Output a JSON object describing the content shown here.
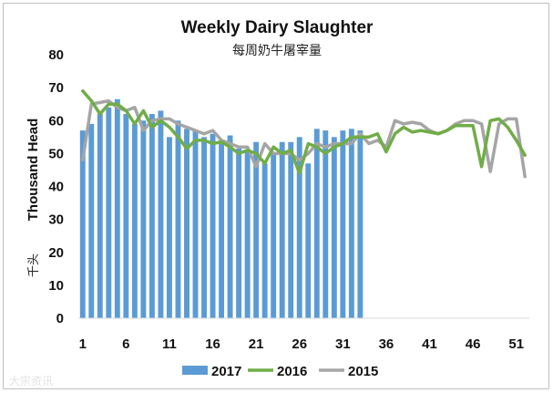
{
  "chart_data": {
    "type": "bar+line",
    "title": "Weekly Dairy Slaughter",
    "subtitle": "每周奶牛屠宰量",
    "ylabel": "Thousand Head",
    "ylabel_cn": "千头",
    "ylim": [
      0,
      80
    ],
    "yticks": [
      "0",
      "10",
      "20",
      "30",
      "40",
      "50",
      "60",
      "70",
      "80"
    ],
    "xlim": [
      1,
      52
    ],
    "xticks": [
      "1",
      "6",
      "11",
      "16",
      "21",
      "26",
      "31",
      "36",
      "41",
      "46",
      "51"
    ],
    "grid": false,
    "legend_position": "bottom",
    "series": [
      {
        "name": "2017",
        "kind": "bar",
        "color": "#5b9bd5",
        "x": [
          1,
          2,
          3,
          4,
          5,
          6,
          7,
          8,
          9,
          10,
          11,
          12,
          13,
          14,
          15,
          16,
          17,
          18,
          19,
          20,
          21,
          22,
          23,
          24,
          25,
          26,
          27,
          28,
          29,
          30,
          31,
          32,
          33
        ],
        "values": [
          57,
          59,
          62,
          64,
          66.5,
          62,
          59,
          60,
          62,
          63,
          55,
          60,
          57.5,
          57,
          55,
          56,
          54,
          55.5,
          51.5,
          51,
          53.5,
          47,
          50,
          53.5,
          53.5,
          55,
          47,
          57.5,
          57,
          55,
          57,
          57.5,
          57
        ]
      },
      {
        "name": "2016",
        "kind": "line",
        "color": "#70ad47",
        "x": [
          1,
          2,
          3,
          4,
          5,
          6,
          7,
          8,
          9,
          10,
          11,
          12,
          13,
          14,
          15,
          16,
          17,
          18,
          19,
          20,
          21,
          22,
          23,
          24,
          25,
          26,
          27,
          28,
          29,
          30,
          31,
          32,
          33,
          34,
          35,
          36,
          37,
          38,
          39,
          40,
          41,
          42,
          43,
          44,
          45,
          46,
          47,
          48,
          49,
          50,
          51,
          52
        ],
        "values": [
          69,
          66,
          62,
          65,
          65,
          63,
          59,
          63,
          58,
          60,
          58,
          55,
          51.5,
          54,
          54,
          53,
          53.5,
          52,
          50,
          51,
          50,
          47,
          52,
          50,
          51,
          44,
          53,
          52,
          50,
          52,
          53,
          55,
          55,
          55,
          56,
          50.5,
          56,
          58,
          56.5,
          57,
          56.5,
          56,
          57,
          58.5,
          58.5,
          58.5,
          46,
          60,
          60.5,
          58,
          54,
          49.5
        ]
      },
      {
        "name": "2015",
        "kind": "line",
        "color": "#a5a5a5",
        "x": [
          1,
          2,
          3,
          4,
          5,
          6,
          7,
          8,
          9,
          10,
          11,
          12,
          13,
          14,
          15,
          16,
          17,
          18,
          19,
          20,
          21,
          22,
          23,
          24,
          25,
          26,
          27,
          28,
          29,
          30,
          31,
          32,
          33,
          34,
          35,
          36,
          37,
          38,
          39,
          40,
          41,
          42,
          43,
          44,
          45,
          46,
          47,
          48,
          49,
          50,
          51,
          52
        ],
        "values": [
          48,
          65,
          65.5,
          66,
          64,
          63,
          64,
          57,
          60,
          60.5,
          60.5,
          59,
          58,
          57,
          56,
          57,
          54,
          53,
          52,
          52,
          46,
          53,
          50,
          50,
          50,
          48,
          50,
          53,
          52,
          53,
          53,
          53,
          56,
          53,
          54,
          52,
          60,
          59,
          59.5,
          59,
          57,
          56,
          57,
          59,
          60,
          60,
          59,
          44.5,
          59,
          60.5,
          60.5,
          43
        ]
      }
    ]
  },
  "watermark": "大宗资讯"
}
